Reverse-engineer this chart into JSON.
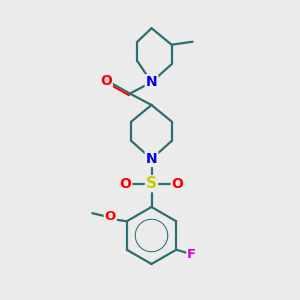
{
  "bg_color": "#ebebeb",
  "bond_color": "#2d6e6e",
  "bond_width": 1.6,
  "atom_colors": {
    "N": "#0000ee",
    "O": "#ff0000",
    "S": "#cccc00",
    "F": "#dd00dd"
  },
  "layout": {
    "xlim": [
      0,
      10
    ],
    "ylim": [
      0,
      10
    ],
    "figsize": [
      3.0,
      3.0
    ],
    "dpi": 100
  }
}
